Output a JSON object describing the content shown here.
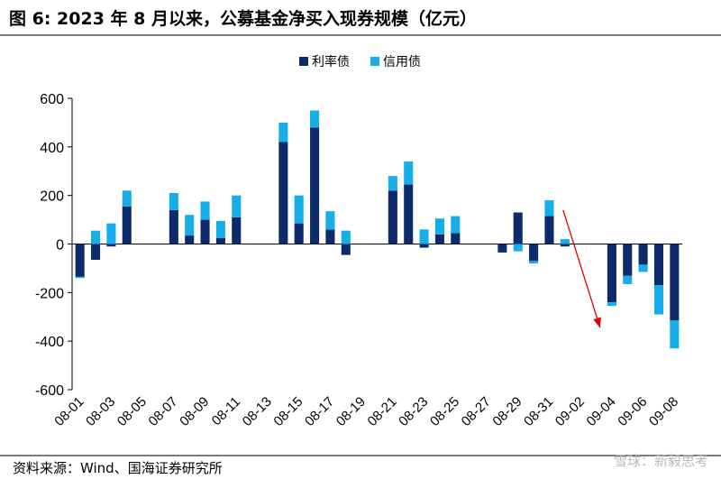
{
  "header": {
    "title": "图 6:  2023 年 8 月以来，公募基金净买入现券规模（亿元）"
  },
  "footer": {
    "source": "资料来源：Wind、国海证券研究所",
    "watermark": "雪球：新毅思考"
  },
  "colors": {
    "rate_bond": "#0d2a6b",
    "credit_bond": "#16aee8",
    "annotation_arrow": "#e00000"
  },
  "chart_data": {
    "type": "bar",
    "stacked": true,
    "title": "",
    "xlabel": "",
    "ylabel": "",
    "ylim": [
      -600,
      600
    ],
    "yticks": [
      -600,
      -400,
      -200,
      0,
      200,
      400,
      600
    ],
    "grid": false,
    "legend_position": "top-center",
    "categories": [
      "08-01",
      "08-02",
      "08-03",
      "08-04",
      "08-05",
      "08-06",
      "08-07",
      "08-08",
      "08-09",
      "08-10",
      "08-11",
      "08-12",
      "08-13",
      "08-14",
      "08-15",
      "08-16",
      "08-17",
      "08-18",
      "08-19",
      "08-20",
      "08-21",
      "08-22",
      "08-23",
      "08-24",
      "08-25",
      "08-26",
      "08-27",
      "08-28",
      "08-29",
      "08-30",
      "08-31",
      "09-01",
      "09-02",
      "09-03",
      "09-04",
      "09-05",
      "09-06",
      "09-07",
      "09-08"
    ],
    "tick_labels": [
      "08-01",
      "08-03",
      "08-05",
      "08-07",
      "08-09",
      "08-11",
      "08-13",
      "08-15",
      "08-17",
      "08-19",
      "08-21",
      "08-23",
      "08-25",
      "08-27",
      "08-29",
      "08-31",
      "09-02",
      "09-04",
      "09-06",
      "09-08"
    ],
    "series": [
      {
        "name": "利率债",
        "color": "#0d2a6b",
        "values": [
          -135,
          -65,
          -10,
          155,
          0,
          0,
          140,
          35,
          100,
          25,
          110,
          0,
          0,
          420,
          85,
          480,
          60,
          -45,
          0,
          0,
          220,
          245,
          -15,
          40,
          45,
          0,
          0,
          -35,
          130,
          -70,
          115,
          -10,
          0,
          0,
          -240,
          -130,
          -85,
          -170,
          -315
        ]
      },
      {
        "name": "信用债",
        "color": "#16aee8",
        "values": [
          -5,
          55,
          85,
          65,
          0,
          0,
          70,
          85,
          75,
          70,
          90,
          0,
          0,
          80,
          115,
          70,
          75,
          55,
          0,
          0,
          60,
          95,
          60,
          65,
          70,
          0,
          0,
          0,
          -30,
          -10,
          65,
          20,
          0,
          0,
          -15,
          -35,
          -30,
          -120,
          -115
        ]
      }
    ],
    "annotation": {
      "type": "arrow",
      "from_category": "09-01",
      "to_category": "09-04",
      "from_value": 140,
      "to_value": -345
    }
  }
}
